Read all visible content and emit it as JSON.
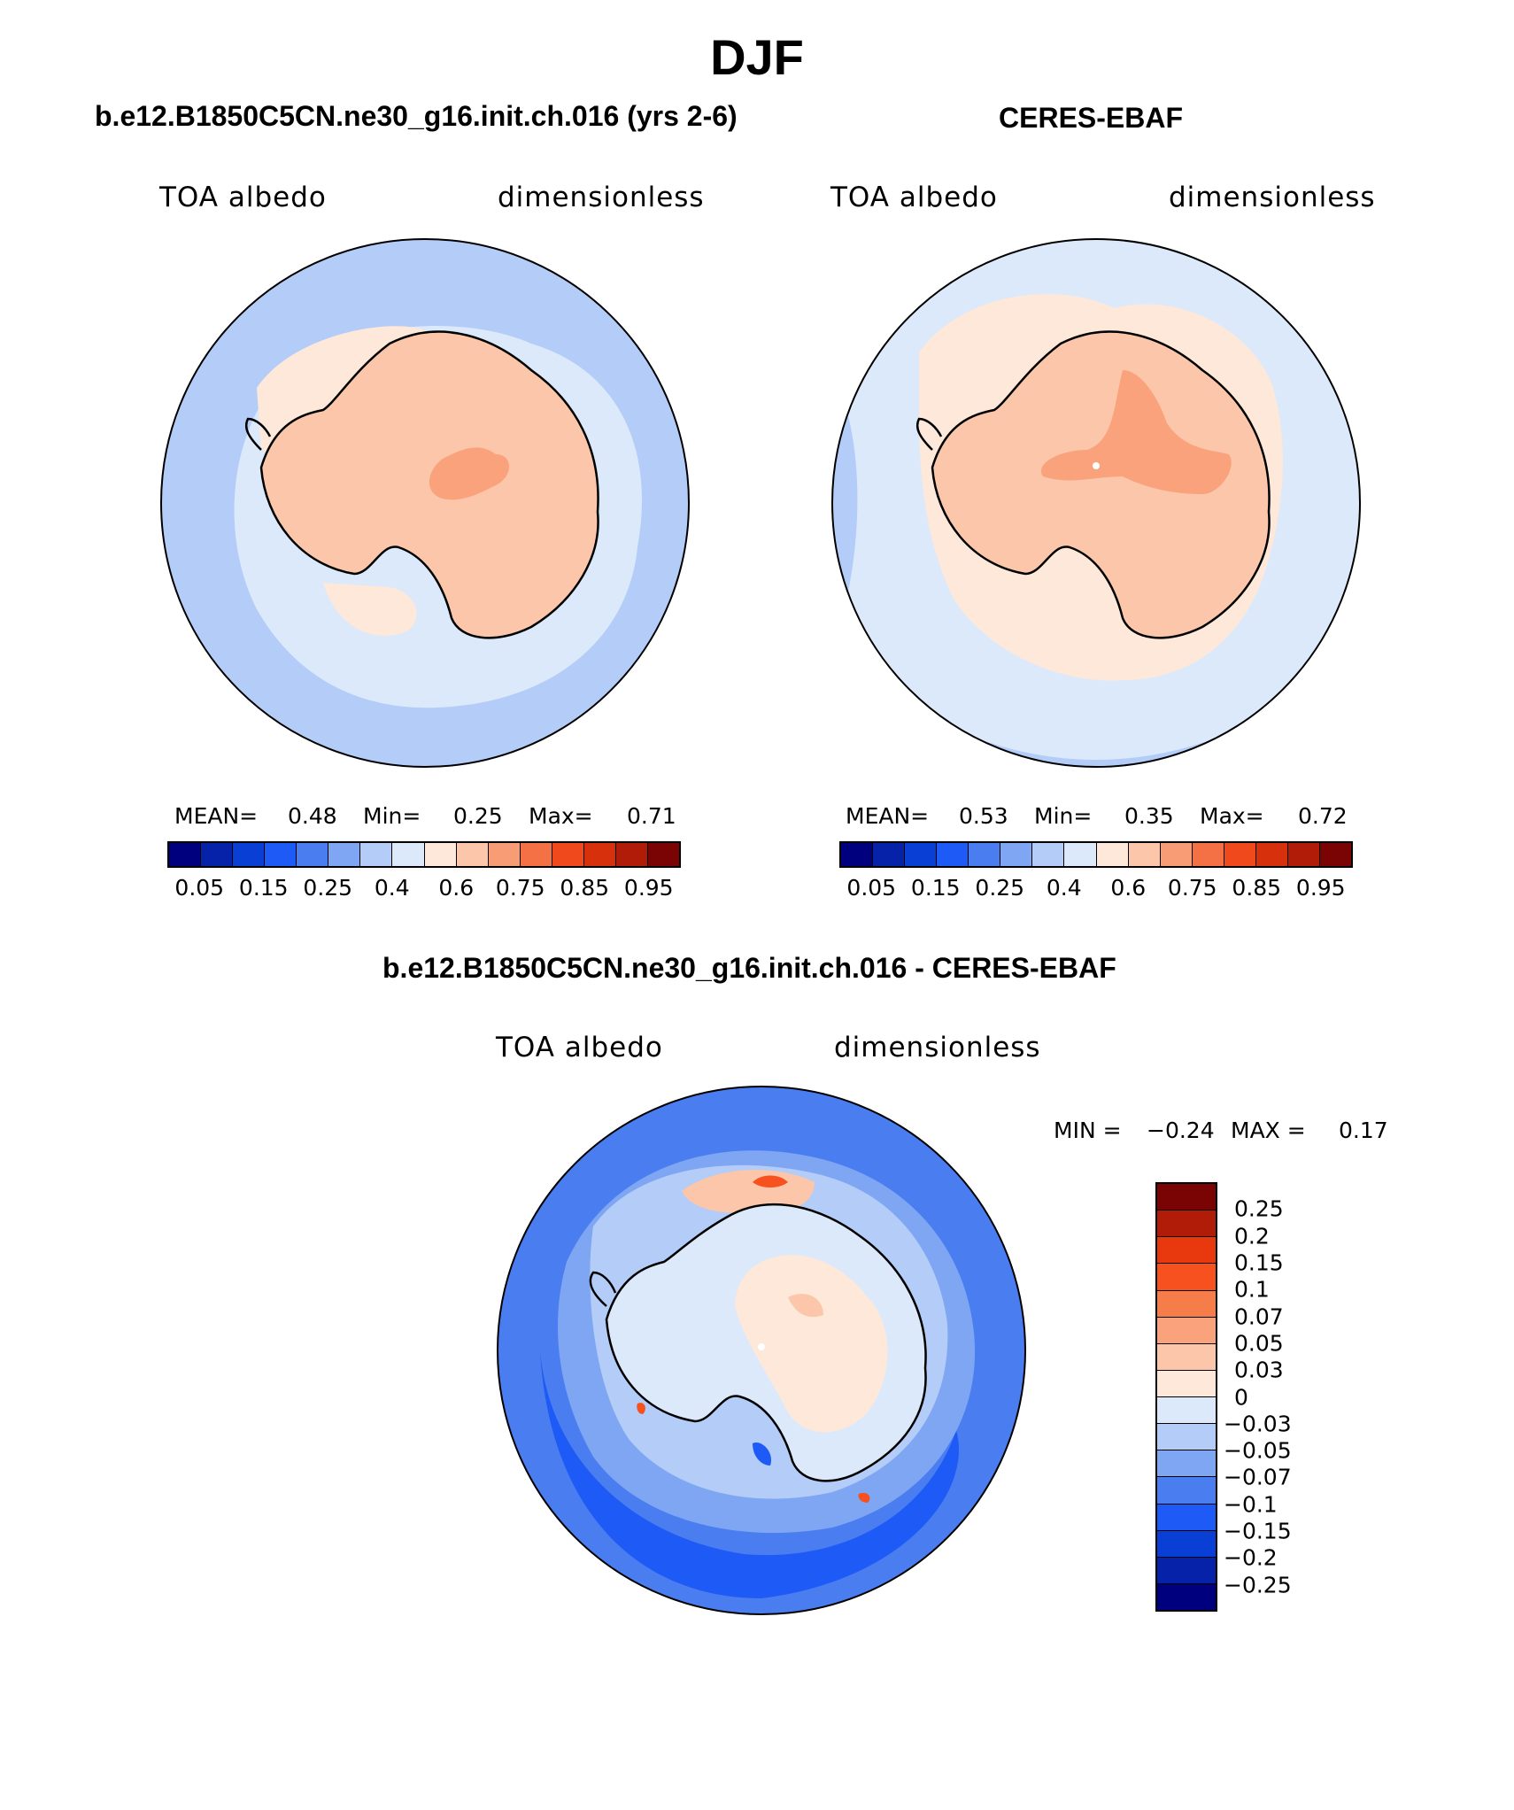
{
  "figure": {
    "title": "DJF",
    "panels": {
      "model": {
        "title": "b.e12.B1850C5CN.ne30_g16.init.ch.016 (yrs 2-6)",
        "variable": "TOA albedo",
        "units": "dimensionless",
        "stats": {
          "mean_label": "MEAN=",
          "mean": "0.48",
          "min_label": "Min=",
          "min": "0.25",
          "max_label": "Max=",
          "max": "0.71"
        }
      },
      "obs": {
        "title": "CERES-EBAF",
        "variable": "TOA albedo",
        "units": "dimensionless",
        "stats": {
          "mean_label": "MEAN=",
          "mean": "0.53",
          "min_label": "Min=",
          "min": "0.35",
          "max_label": "Max=",
          "max": "0.72"
        }
      },
      "diff": {
        "title": "b.e12.B1850C5CN.ne30_g16.init.ch.016 - CERES-EBAF",
        "variable": "TOA albedo",
        "units": "dimensionless",
        "stats": {
          "min_label": "MIN =",
          "min": "−0.24",
          "max_label": "MAX =",
          "max": "0.17"
        }
      }
    },
    "colorbar_abs": {
      "ticks": [
        "0.05",
        "0.15",
        "0.25",
        "0.4",
        "0.6",
        "0.75",
        "0.85",
        "0.95"
      ],
      "colors": [
        "#00007f",
        "#0522a8",
        "#0a3fd6",
        "#1e5af5",
        "#4a7df0",
        "#7fa6f3",
        "#b3ccf8",
        "#dce9fb",
        "#fde8da",
        "#fbc6a9",
        "#f79c74",
        "#f47145",
        "#f04a1c",
        "#d6300c",
        "#b01c08",
        "#7a0303"
      ]
    },
    "colorbar_diff": {
      "ticks": [
        "0.25",
        "0.2",
        "0.15",
        "0.1",
        "0.07",
        "0.05",
        "0.03",
        "0",
        "−0.03",
        "−0.05",
        "−0.07",
        "−0.1",
        "−0.15",
        "−0.2",
        "−0.25"
      ],
      "colors": [
        "#7a0303",
        "#b01c08",
        "#e8380e",
        "#f6511f",
        "#f67c4a",
        "#f9a27c",
        "#fbc6a9",
        "#fde8da",
        "#dce9fb",
        "#b3ccf8",
        "#7fa6f3",
        "#4a7df0",
        "#1e5af5",
        "#0a3fd6",
        "#0522a8",
        "#00007f"
      ]
    },
    "map_colors": {
      "model_ocean_outer": "#b3ccf8",
      "model_ocean_inner": "#dce9fb",
      "model_ice_shelf": "#fde8da",
      "model_continent": "#fbc6a9",
      "model_high": "#f9a27c",
      "obs_ocean": "#dce9fb",
      "obs_ocean_edge": "#b3ccf8",
      "obs_ice": "#fde8da",
      "obs_continent": "#fbc6a9",
      "obs_high": "#f9a27c",
      "diff_outer": "#4a7df0",
      "diff_mid": "#1e5af5",
      "diff_ring": "#7fa6f3",
      "diff_near": "#b3ccf8",
      "diff_continent": "#dce9fb",
      "diff_pos": "#fde8da",
      "diff_pos2": "#fbc6a9",
      "diff_hot": "#f6511f"
    }
  }
}
